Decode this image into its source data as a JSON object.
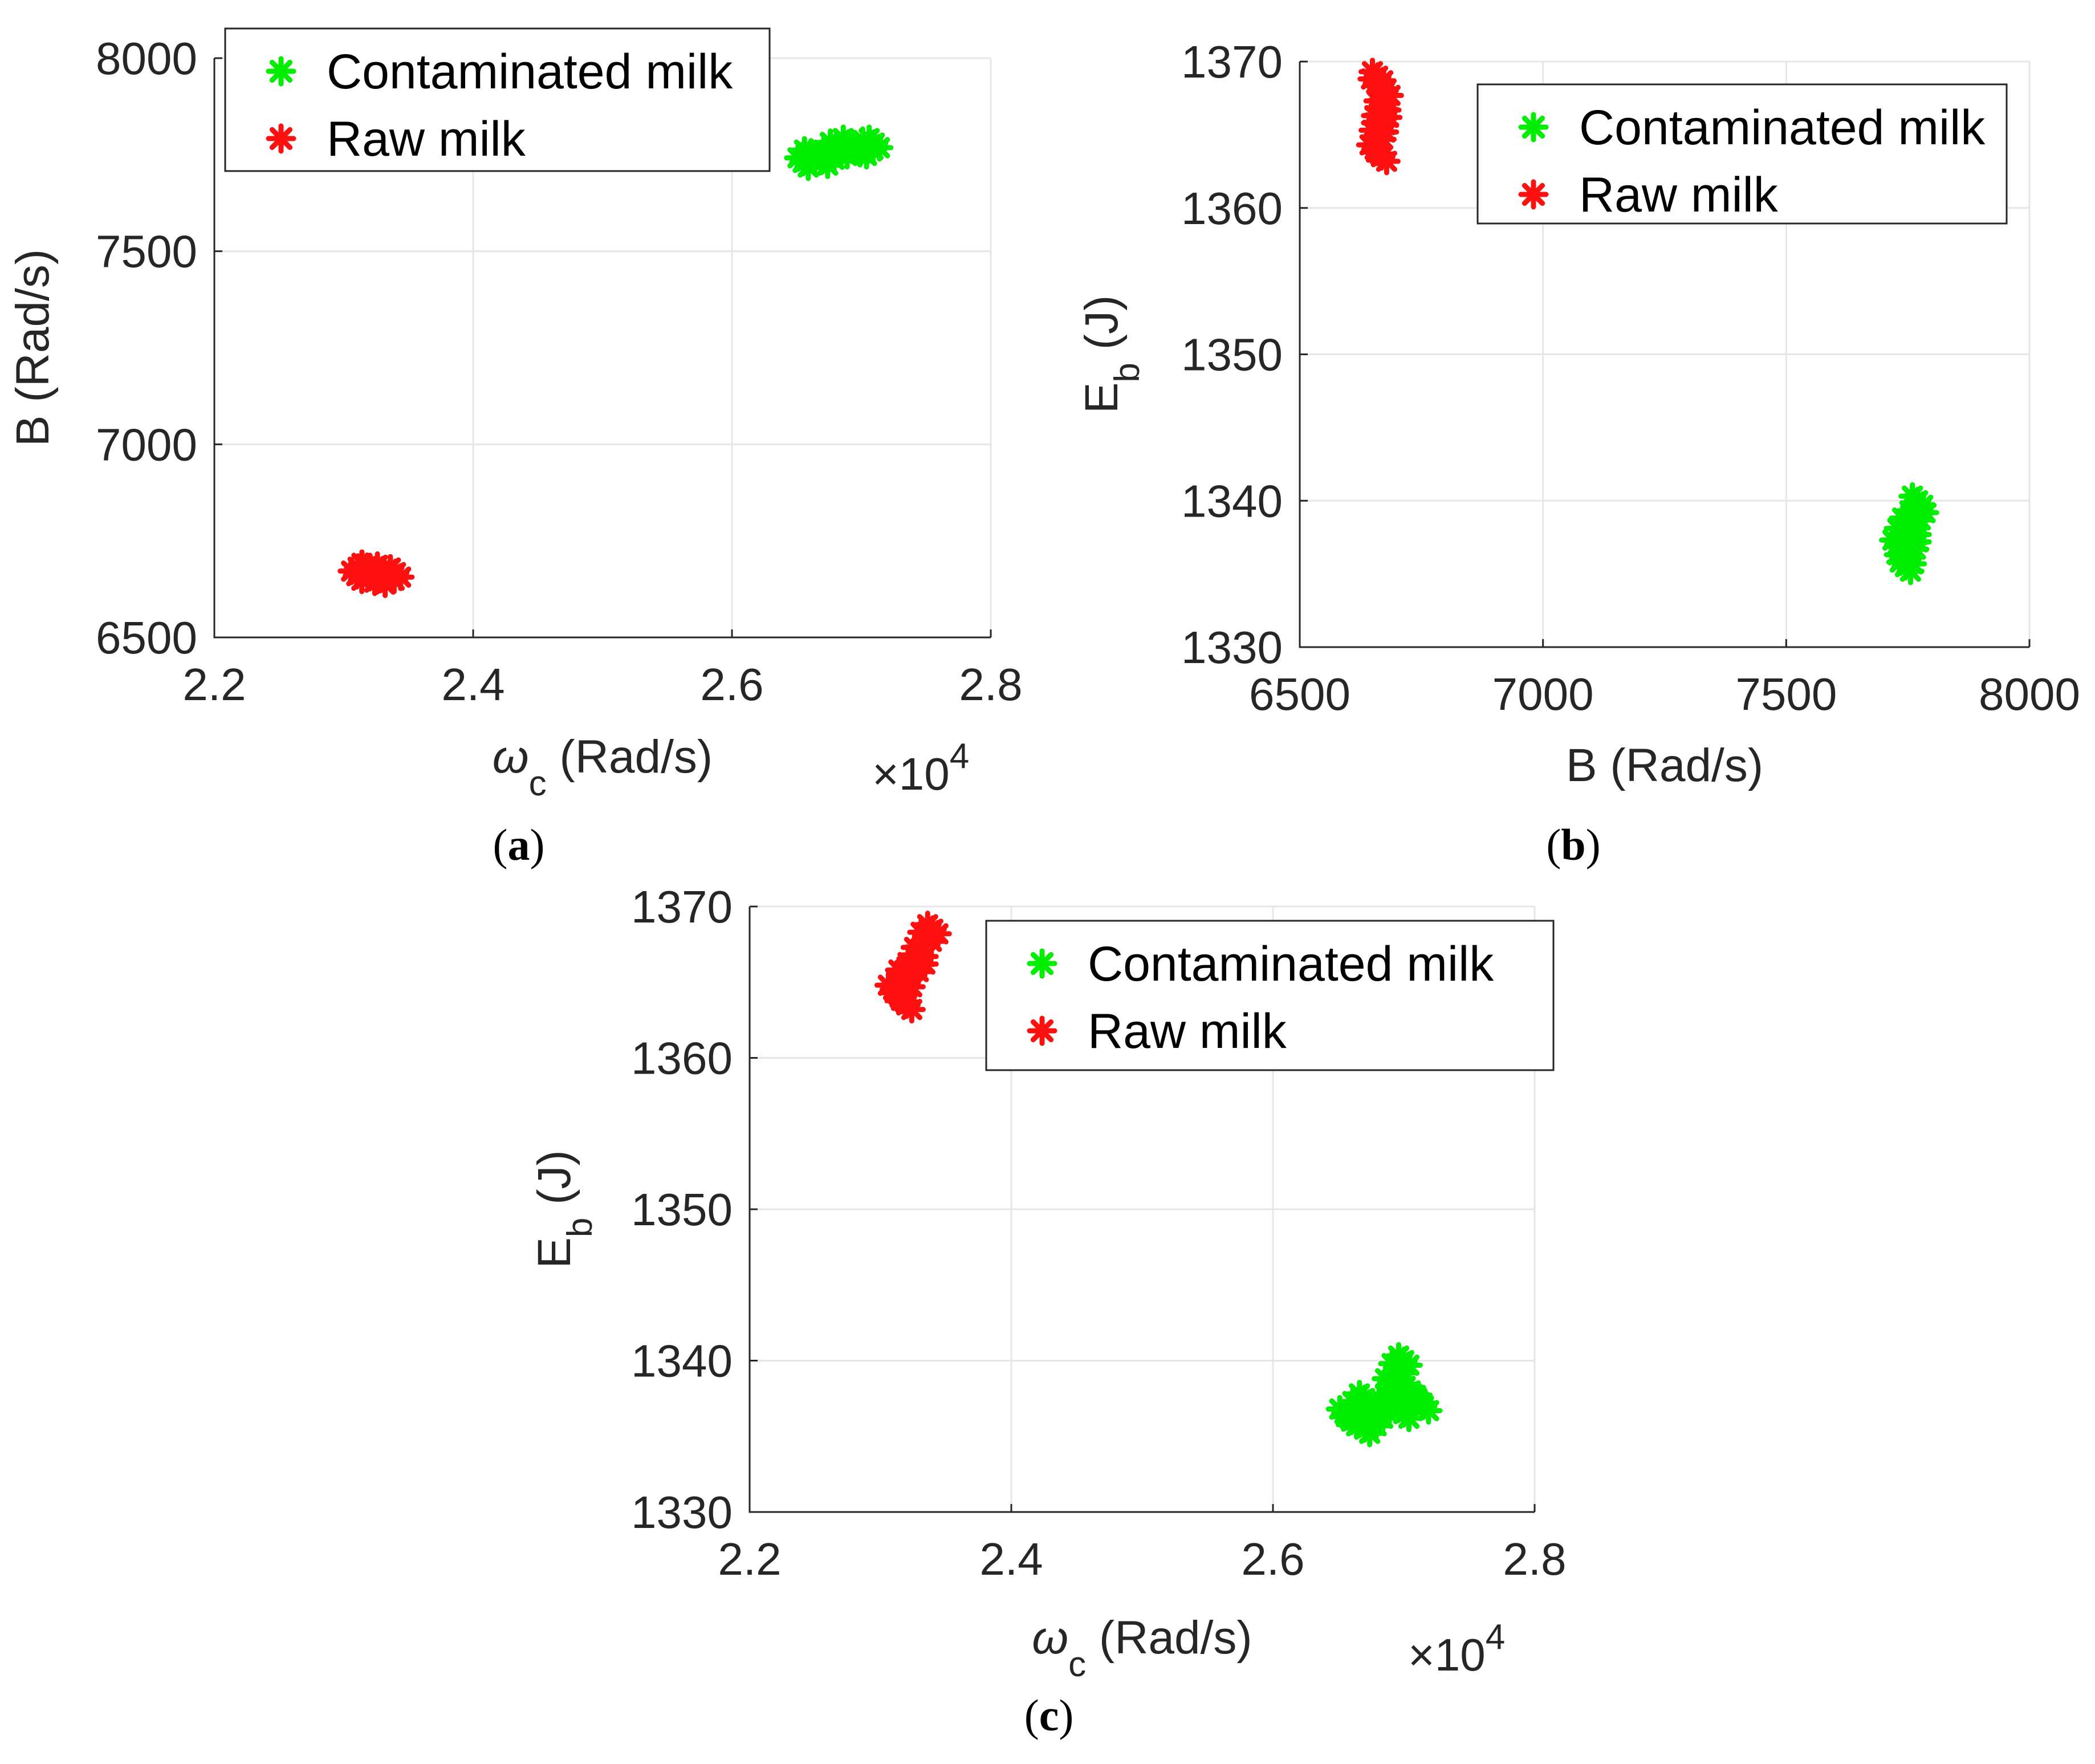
{
  "colors": {
    "contaminated": "#00ee00",
    "raw": "#ff1010"
  },
  "chart_data": [
    {
      "id": "a",
      "type": "scatter",
      "panel_label": "a",
      "xlabel_symbol": "ω",
      "xlabel_sub": "c",
      "xlabel_unit": " (Rad/s)",
      "ylabel_main": "B (Rad/s)",
      "ylabel_sub": "",
      "ylabel_unit": "",
      "x_multiplier_base": "×10",
      "x_multiplier_exp": "4",
      "xlim": [
        2.2,
        2.8
      ],
      "ylim": [
        6500,
        8000
      ],
      "xticks": [
        "2.2",
        "2.4",
        "2.6",
        "2.8"
      ],
      "yticks": [
        "6500",
        "7000",
        "7500",
        "8000"
      ],
      "grid": true,
      "legend_position": "top-left",
      "series": [
        {
          "name": "Contaminated milk",
          "color": "#00ee00",
          "marker": "asterisk",
          "x": [
            2.655,
            2.665,
            2.675,
            2.685,
            2.695,
            2.705,
            2.71,
            2.66,
            2.68,
            2.7,
            2.67,
            2.69
          ],
          "y": [
            7730,
            7745,
            7750,
            7760,
            7765,
            7775,
            7780,
            7750,
            7770,
            7760,
            7735,
            7780
          ]
        },
        {
          "name": "Raw milk",
          "color": "#ff1010",
          "marker": "asterisk",
          "x": [
            2.31,
            2.315,
            2.32,
            2.325,
            2.33,
            2.335,
            2.34,
            2.318,
            2.328,
            2.322
          ],
          "y": [
            6660,
            6670,
            6655,
            6665,
            6675,
            6660,
            6668,
            6680,
            6650,
            6672
          ]
        }
      ]
    },
    {
      "id": "b",
      "type": "scatter",
      "panel_label": "b",
      "xlabel_symbol": "",
      "xlabel_sub": "",
      "xlabel_unit": "B (Rad/s)",
      "ylabel_main": "E",
      "ylabel_sub": "b",
      "ylabel_unit": " (J)",
      "x_multiplier_base": "",
      "x_multiplier_exp": "",
      "xlim": [
        6500,
        8000
      ],
      "ylim": [
        1330,
        1370
      ],
      "xticks": [
        "6500",
        "7000",
        "7500",
        "8000"
      ],
      "yticks": [
        "1330",
        "1340",
        "1350",
        "1360",
        "1370"
      ],
      "grid": true,
      "legend_position": "top-right",
      "series": [
        {
          "name": "Contaminated milk",
          "color": "#00ee00",
          "marker": "asterisk",
          "x": [
            7730,
            7740,
            7745,
            7750,
            7755,
            7760,
            7765,
            7770,
            7775,
            7760,
            7750,
            7740
          ],
          "y": [
            1337,
            1336,
            1335.5,
            1336,
            1337,
            1338,
            1339,
            1340,
            1339.5,
            1337.5,
            1338.5,
            1337.8
          ]
        },
        {
          "name": "Raw milk",
          "color": "#ff1010",
          "marker": "asterisk",
          "x": [
            6655,
            6660,
            6665,
            6670,
            6675,
            6660,
            6668,
            6672,
            6658,
            6665
          ],
          "y": [
            1364,
            1365,
            1366,
            1367,
            1368,
            1369,
            1363.5,
            1366.5,
            1368.5,
            1365.5
          ]
        }
      ]
    },
    {
      "id": "c",
      "type": "scatter",
      "panel_label": "c",
      "xlabel_symbol": "ω",
      "xlabel_sub": "c",
      "xlabel_unit": " (Rad/s)",
      "ylabel_main": "E",
      "ylabel_sub": "b",
      "ylabel_unit": " (J)",
      "x_multiplier_base": "×10",
      "x_multiplier_exp": "4",
      "xlim": [
        2.2,
        2.8
      ],
      "ylim": [
        1330,
        1370
      ],
      "xticks": [
        "2.2",
        "2.4",
        "2.6",
        "2.8"
      ],
      "yticks": [
        "1330",
        "1340",
        "1350",
        "1360",
        "1370"
      ],
      "grid": true,
      "legend_position": "top-right",
      "series": [
        {
          "name": "Contaminated milk",
          "color": "#00ee00",
          "marker": "asterisk",
          "x": [
            2.655,
            2.66,
            2.665,
            2.67,
            2.675,
            2.68,
            2.685,
            2.69,
            2.695,
            2.7,
            2.705,
            2.71,
            2.715,
            2.67,
            2.69,
            2.7
          ],
          "y": [
            1336.5,
            1336,
            1337,
            1335.5,
            1336,
            1336.5,
            1337,
            1337.5,
            1339.5,
            1340,
            1338,
            1337.5,
            1337,
            1337.5,
            1338.5,
            1336.5
          ]
        },
        {
          "name": "Raw milk",
          "color": "#ff1010",
          "marker": "asterisk",
          "x": [
            2.31,
            2.315,
            2.32,
            2.325,
            2.33,
            2.335,
            2.34,
            2.32,
            2.33,
            2.318
          ],
          "y": [
            1364.5,
            1364,
            1365,
            1366,
            1367,
            1368,
            1368.5,
            1363.5,
            1366.5,
            1365.5
          ]
        }
      ]
    }
  ]
}
